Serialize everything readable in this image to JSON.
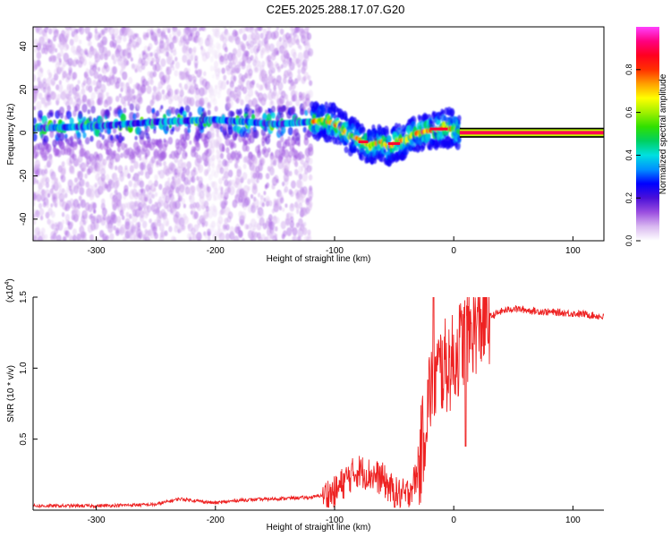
{
  "title": "C2E5.2025.288.17.07.G20",
  "chart_data": [
    {
      "type": "heatmap",
      "panel": "top",
      "xlabel": "Height of straight line (km)",
      "ylabel": "Frequency (Hz)",
      "xlim": [
        -353,
        126
      ],
      "ylim": [
        -50,
        49
      ],
      "xticks": [
        -300,
        -200,
        -100,
        0,
        100
      ],
      "xtick_labels": [
        "-300",
        "-200",
        "-100",
        "0",
        "100"
      ],
      "yticks": [
        -40,
        -20,
        0,
        20,
        40
      ],
      "ytick_labels": [
        "-40",
        "-20",
        "0",
        "20",
        "40"
      ],
      "ridge": {
        "x": [
          -353,
          -300,
          -250,
          -200,
          -150,
          -120,
          -110,
          -100,
          -90,
          -80,
          -70,
          -60,
          -55,
          -50,
          -40,
          -30,
          -20,
          -10,
          0,
          5,
          126
        ],
        "y": [
          2,
          3,
          5,
          6,
          4,
          5,
          6,
          4,
          0,
          -3,
          -6,
          -4,
          -7,
          -5,
          -3,
          0,
          1,
          2,
          2,
          0,
          0
        ]
      },
      "colorbar": {
        "label": "Normalized spectral amplitude",
        "ticks": [
          0.0,
          0.2,
          0.4,
          0.6,
          0.8
        ],
        "tick_labels": [
          "0.0",
          "0.2",
          "0.4",
          "0.6",
          "0.8"
        ],
        "colors": [
          "#ffffff",
          "#d9b8f0",
          "#9b4fe0",
          "#4a10d8",
          "#0000ff",
          "#0090ff",
          "#00e0e0",
          "#00d060",
          "#30e000",
          "#a0f000",
          "#ffff00",
          "#ffa000",
          "#ff3000",
          "#ff0020",
          "#ff0080",
          "#ff40ff"
        ]
      }
    },
    {
      "type": "line",
      "panel": "bottom",
      "xlabel": "Height of straight line (km)",
      "ylabel": "SNR (10 * v/v)",
      "yscale_label": "(x10",
      "yscale_exp": "4",
      "yscale_close": ")",
      "xlim": [
        -353,
        126
      ],
      "ylim": [
        0,
        1.5
      ],
      "xticks": [
        -300,
        -200,
        -100,
        0,
        100
      ],
      "xtick_labels": [
        "-300",
        "-200",
        "-100",
        "0",
        "100"
      ],
      "yticks": [
        0.5,
        1.0,
        1.5
      ],
      "ytick_labels": [
        "0.5",
        "1.0",
        "1.5"
      ],
      "series": [
        {
          "name": "SNR",
          "color": "#ee2222",
          "x": [
            -353,
            -300,
            -250,
            -230,
            -200,
            -180,
            -150,
            -120,
            -100,
            -90,
            -80,
            -70,
            -60,
            -50,
            -40,
            -30,
            -25,
            -20,
            -15,
            -10,
            -5,
            0,
            5,
            10,
            20,
            30,
            40,
            50,
            70,
            90,
            110,
            126
          ],
          "y": [
            0.03,
            0.03,
            0.04,
            0.08,
            0.05,
            0.07,
            0.08,
            0.09,
            0.12,
            0.22,
            0.28,
            0.25,
            0.22,
            0.12,
            0.1,
            0.25,
            0.55,
            0.85,
            0.95,
            1.0,
            1.02,
            1.05,
            1.15,
            1.22,
            1.3,
            1.36,
            1.4,
            1.42,
            1.4,
            1.39,
            1.38,
            1.36
          ]
        }
      ]
    }
  ]
}
